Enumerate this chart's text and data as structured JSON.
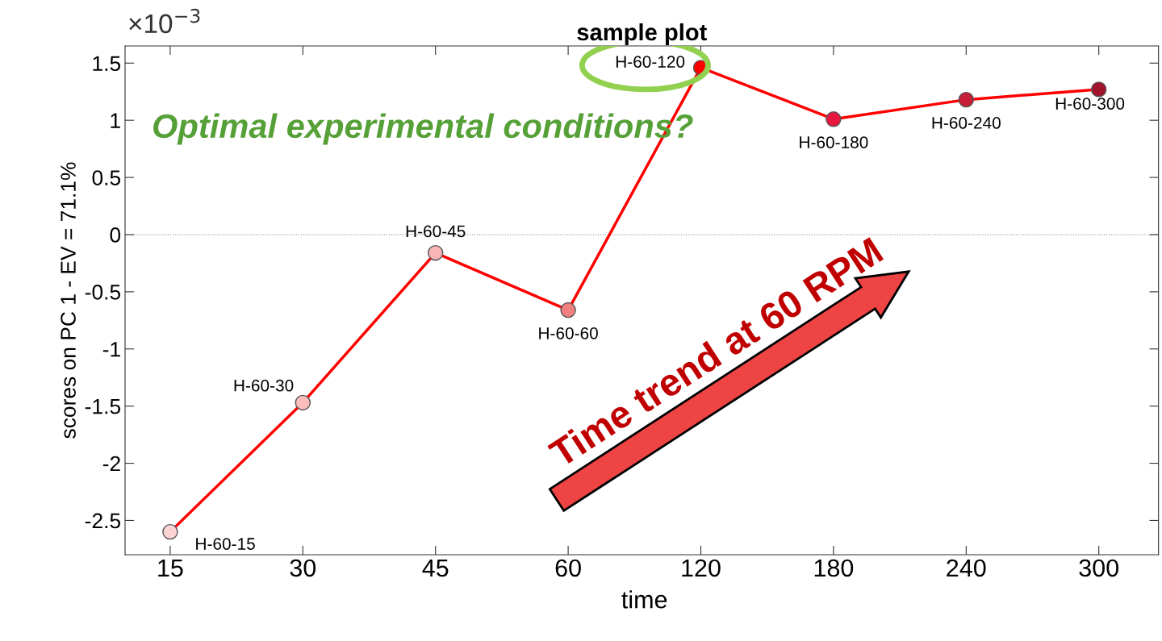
{
  "chart_data": {
    "type": "line",
    "title": "sample plot",
    "xlabel": "time",
    "ylabel": "scores on PC 1 - EV = 71.1%",
    "categories": [
      "15",
      "30",
      "45",
      "60",
      "120",
      "180",
      "240",
      "300"
    ],
    "series": [
      {
        "color": "#ff0000",
        "values": [
          -2.6,
          -1.47,
          -0.16,
          -0.66,
          1.46,
          1.01,
          1.18,
          1.27
        ],
        "colors": [
          "#fcd4d4",
          "#fbbcbc",
          "#f9b4b4",
          "#f28080",
          "#ff0000",
          "#e8173f",
          "#c71f3a",
          "#a0142c"
        ]
      }
    ],
    "ylim": [
      -2.8,
      1.65
    ],
    "yticks": [
      -2.5,
      -2,
      -1.5,
      -1,
      -0.5,
      0,
      0.5,
      1,
      1.5
    ],
    "ref_lines": [
      {
        "axis": "y",
        "value": 0,
        "color": "#888888",
        "line_style": "dotted"
      }
    ],
    "marker": "circle",
    "line_style": "solid",
    "grid": false,
    "legend": false,
    "annotations": [
      "×10$^{−3}$",
      {
        "text": "H-60-15",
        "x": "15",
        "y": -2.6
      },
      {
        "text": "H-60-30",
        "x": "30",
        "y": -1.47
      },
      {
        "text": "H-60-45",
        "x": "45",
        "y": -0.16
      },
      {
        "text": "H-60-60",
        "x": "60",
        "y": -0.66
      },
      {
        "text": "H-60-120",
        "x": "120",
        "y": 1.46
      },
      {
        "text": "H-60-180",
        "x": "180",
        "y": 1.01
      },
      {
        "text": "H-60-240",
        "x": "240",
        "y": 1.18
      },
      {
        "text": "H-60-300",
        "x": "300",
        "y": 1.27
      },
      "Optimal experimental conditions?",
      "Time trend at 60 RPM"
    ]
  }
}
